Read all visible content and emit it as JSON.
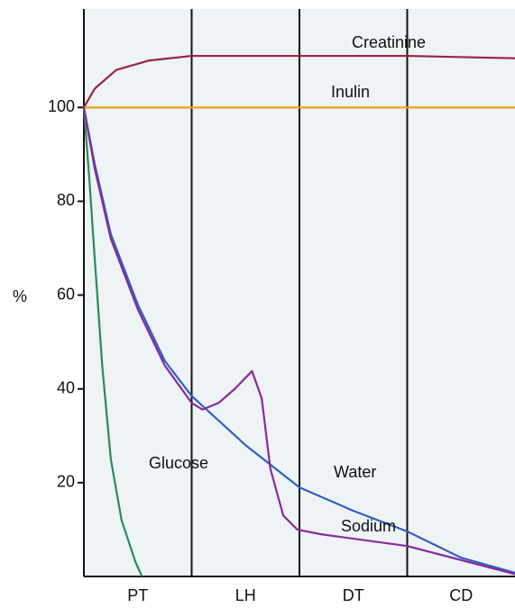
{
  "chart_data": {
    "type": "line",
    "y_label": "%",
    "categories": [
      "PT",
      "LH",
      "DT",
      "CD"
    ],
    "xlim": [
      0,
      4
    ],
    "ylim": [
      0,
      121
    ],
    "yticks": [
      20,
      40,
      60,
      80,
      100
    ],
    "series": [
      {
        "name": "Creatinine",
        "color": "#9b2340",
        "x": [
          0,
          0.1,
          0.3,
          0.6,
          1,
          2,
          3,
          4
        ],
        "values": [
          100,
          104,
          108,
          110,
          111,
          111,
          111,
          110.5
        ]
      },
      {
        "name": "Inulin",
        "color": "#f0a020",
        "x": [
          0,
          4
        ],
        "values": [
          100,
          100
        ]
      },
      {
        "name": "Glucose",
        "color": "#2a8a5a",
        "x": [
          0,
          0.05,
          0.1,
          0.17,
          0.25,
          0.35,
          0.48,
          0.54
        ],
        "values": [
          100,
          85,
          68,
          45,
          25,
          12,
          3,
          0
        ]
      },
      {
        "name": "Water",
        "color": "#2e5fc4",
        "x": [
          0,
          0.1,
          0.25,
          0.5,
          0.75,
          1,
          1.5,
          2,
          2.5,
          3,
          3.5,
          4
        ],
        "values": [
          100,
          88,
          73,
          58,
          46,
          38.5,
          28,
          19,
          14,
          9.6,
          4,
          0.8
        ]
      },
      {
        "name": "Sodium",
        "color": "#8a2a9a",
        "x": [
          0,
          0.1,
          0.25,
          0.5,
          0.75,
          1,
          1.1,
          1.25,
          1.4,
          1.56,
          1.65,
          1.73,
          1.85,
          1.98,
          2.2,
          3,
          3.5,
          4
        ],
        "values": [
          100,
          87,
          72,
          57,
          45,
          37,
          35.6,
          37,
          40,
          43.8,
          38,
          23,
          13,
          10,
          9,
          6.5,
          3.5,
          0.5
        ]
      }
    ]
  }
}
